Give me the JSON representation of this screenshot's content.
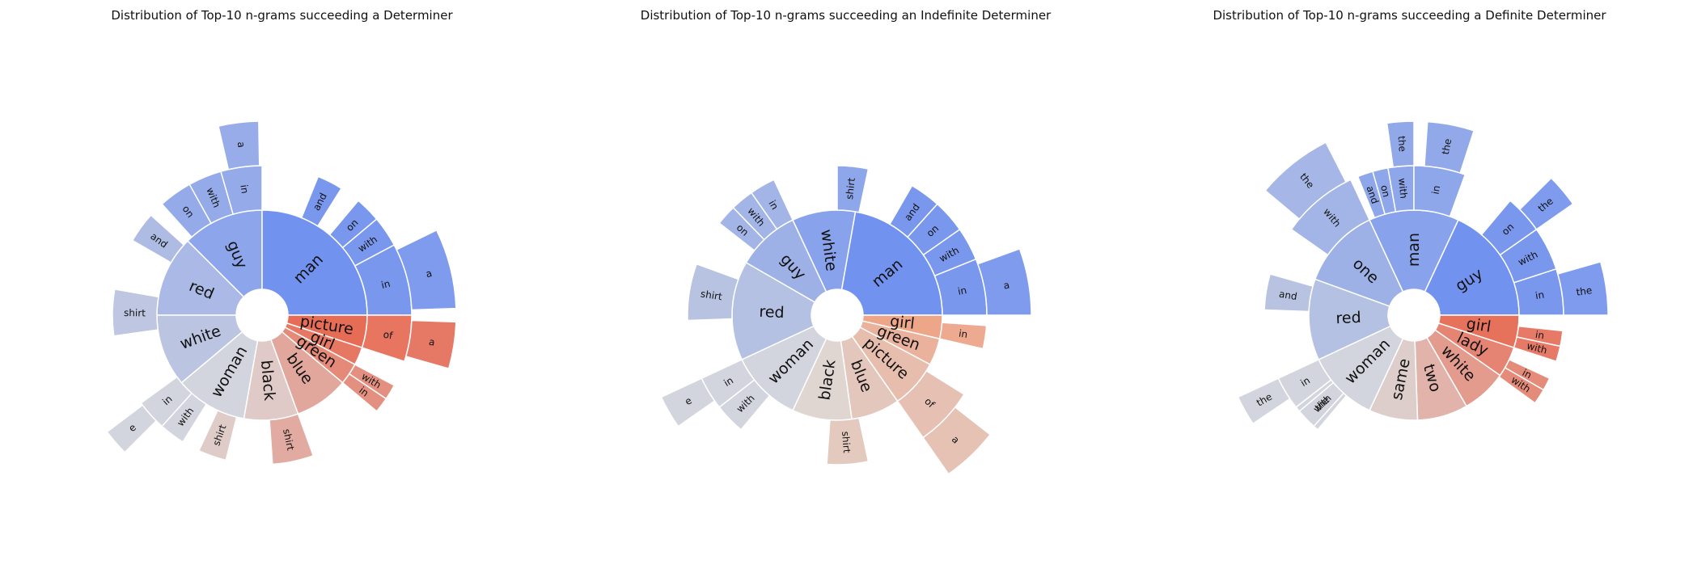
{
  "chart_data": [
    {
      "type": "sunburst",
      "title": "Distribution of Top-10 n-grams succeeding a Determiner",
      "cool_color": "#6b8ef0",
      "warm_color": "#e8664e",
      "rings": [
        [
          {
            "label": "red",
            "start": 270,
            "end": 315,
            "tone": -0.45,
            "children": []
          },
          {
            "label": "guy",
            "start": 315,
            "end": 360,
            "tone": -0.7,
            "children": [
              {
                "label": "on",
                "start": 318,
                "end": 331,
                "tone": -0.7,
                "children": []
              },
              {
                "label": "with",
                "start": 331,
                "end": 344,
                "tone": -0.7,
                "children": []
              },
              {
                "label": "in",
                "start": 344,
                "end": 360,
                "tone": -0.7,
                "children": [
                  {
                    "label": "a",
                    "start": 347,
                    "end": 359,
                    "tone": -0.7
                  }
                ]
              }
            ]
          },
          {
            "label": "man",
            "start": 0,
            "end": 90,
            "tone": -0.95,
            "children": [
              {
                "label": "and",
                "start": 22,
                "end": 32,
                "tone": -0.95,
                "children": []
              },
              {
                "label": "on",
                "start": 40,
                "end": 50,
                "tone": -0.95,
                "children": []
              },
              {
                "label": "with",
                "start": 50,
                "end": 62,
                "tone": -0.95,
                "children": []
              },
              {
                "label": "in",
                "start": 62,
                "end": 90,
                "tone": -0.95,
                "children": [
                  {
                    "label": "a",
                    "start": 64,
                    "end": 88,
                    "tone": -0.95
                  }
                ]
              }
            ]
          },
          {
            "label": "picture",
            "start": 90,
            "end": 108,
            "tone": 0.95,
            "children": [
              {
                "label": "of",
                "start": 90,
                "end": 108,
                "tone": 0.95,
                "children": [
                  {
                    "label": "a",
                    "start": 92,
                    "end": 106,
                    "tone": 0.95
                  }
                ]
              }
            ]
          },
          {
            "label": "girl",
            "start": 108,
            "end": 118,
            "tone": 0.85,
            "children": []
          },
          {
            "label": "green",
            "start": 118,
            "end": 130,
            "tone": 0.7,
            "children": [
              {
                "label": "with",
                "start": 118,
                "end": 124,
                "tone": 0.7,
                "children": []
              },
              {
                "label": "in",
                "start": 124,
                "end": 130,
                "tone": 0.7,
                "children": []
              }
            ]
          },
          {
            "label": "blue",
            "start": 130,
            "end": 160,
            "tone": 0.45,
            "children": [
              {
                "label": "shirt",
                "start": 160,
                "end": 176,
                "tone": 0.45,
                "children": []
              }
            ]
          },
          {
            "label": "black",
            "start": 160,
            "end": 190,
            "tone": 0.15,
            "children": [
              {
                "label": "shirt",
                "start": 194,
                "end": 205,
                "tone": 0.15,
                "children": []
              }
            ]
          },
          {
            "label": "woman",
            "start": 190,
            "end": 230,
            "tone": -0.1,
            "children": [
              {
                "label": "with",
                "start": 212,
                "end": 222,
                "tone": -0.1,
                "children": []
              },
              {
                "label": "in",
                "start": 222,
                "end": 234,
                "tone": -0.1,
                "children": [
                  {
                    "label": "e",
                    "start": 225,
                    "end": 233,
                    "tone": -0.1
                  }
                ]
              }
            ]
          },
          {
            "label": "white",
            "start": 230,
            "end": 270,
            "tone": -0.3,
            "children": [
              {
                "label": "shirt",
                "start": 262,
                "end": 280,
                "tone": -0.3,
                "children": []
              },
              {
                "label": "and",
                "start": 300,
                "end": 312,
                "tone": -0.45,
                "children": []
              }
            ]
          }
        ]
      ]
    },
    {
      "type": "sunburst",
      "title": "Distribution of Top-10 n-grams succeeding an Indefinite Determiner",
      "cool_color": "#6b8ef0",
      "warm_color": "#f0a080",
      "rings": [
        [
          {
            "label": "guy",
            "start": 300,
            "end": 335,
            "tone": -0.55,
            "children": [
              {
                "label": "on",
                "start": 308,
                "end": 316,
                "tone": -0.55,
                "children": []
              },
              {
                "label": "with",
                "start": 316,
                "end": 325,
                "tone": -0.55,
                "children": []
              },
              {
                "label": "in",
                "start": 325,
                "end": 335,
                "tone": -0.55,
                "children": []
              }
            ]
          },
          {
            "label": "white",
            "start": 335,
            "end": 10,
            "tone": -0.75,
            "children": [
              {
                "label": "shirt",
                "start": 0,
                "end": 12,
                "tone": -0.75,
                "children": []
              }
            ]
          },
          {
            "label": "man",
            "start": 10,
            "end": 90,
            "tone": -0.95,
            "children": [
              {
                "label": "and",
                "start": 30,
                "end": 42,
                "tone": -0.95,
                "children": []
              },
              {
                "label": "on",
                "start": 42,
                "end": 55,
                "tone": -0.95,
                "children": []
              },
              {
                "label": "with",
                "start": 55,
                "end": 68,
                "tone": -0.95,
                "children": []
              },
              {
                "label": "in",
                "start": 68,
                "end": 90,
                "tone": -0.95,
                "children": [
                  {
                    "label": "a",
                    "start": 70,
                    "end": 90,
                    "tone": -0.95
                  }
                ]
              }
            ]
          },
          {
            "label": "girl",
            "start": 90,
            "end": 103,
            "tone": 0.9,
            "children": [
              {
                "label": "in",
                "start": 94,
                "end": 103,
                "tone": 0.9,
                "children": []
              }
            ]
          },
          {
            "label": "green",
            "start": 103,
            "end": 118,
            "tone": 0.7,
            "children": []
          },
          {
            "label": "picture",
            "start": 118,
            "end": 145,
            "tone": 0.5,
            "children": [
              {
                "label": "of",
                "start": 122,
                "end": 145,
                "tone": 0.5,
                "children": [
                  {
                    "label": "a",
                    "start": 128,
                    "end": 145,
                    "tone": 0.5
                  }
                ]
              }
            ]
          },
          {
            "label": "blue",
            "start": 145,
            "end": 172,
            "tone": 0.35,
            "children": [
              {
                "label": "shirt",
                "start": 168,
                "end": 184,
                "tone": 0.35,
                "children": []
              }
            ]
          },
          {
            "label": "black",
            "start": 172,
            "end": 205,
            "tone": 0.12,
            "children": []
          },
          {
            "label": "woman",
            "start": 205,
            "end": 245,
            "tone": -0.1,
            "children": [
              {
                "label": "with",
                "start": 220,
                "end": 232,
                "tone": -0.1,
                "children": []
              },
              {
                "label": "in",
                "start": 232,
                "end": 245,
                "tone": -0.1,
                "children": [
                  {
                    "label": "e",
                    "start": 235,
                    "end": 245,
                    "tone": -0.1
                  }
                ]
              }
            ]
          },
          {
            "label": "red",
            "start": 245,
            "end": 300,
            "tone": -0.35,
            "children": [
              {
                "label": "shirt",
                "start": 268,
                "end": 290,
                "tone": -0.35,
                "children": []
              }
            ]
          }
        ]
      ]
    },
    {
      "type": "sunburst",
      "title": "Distribution of Top-10 n-grams succeeding a Definite Determiner",
      "cool_color": "#6b8ef0",
      "warm_color": "#e8664e",
      "rings": [
        [
          {
            "label": "one",
            "start": 290,
            "end": 335,
            "tone": -0.55,
            "children": [
              {
                "label": "with",
                "start": 305,
                "end": 335,
                "tone": -0.55,
                "children": [
                  {
                    "label": "the",
                    "start": 310,
                    "end": 333,
                    "tone": -0.55
                  }
                ]
              }
            ]
          },
          {
            "label": "man",
            "start": 335,
            "end": 25,
            "tone": -0.75,
            "children": [
              {
                "label": "and",
                "start": 338,
                "end": 344,
                "tone": -0.75,
                "children": []
              },
              {
                "label": "on",
                "start": 344,
                "end": 350,
                "tone": -0.75,
                "children": []
              },
              {
                "label": "with",
                "start": 350,
                "end": 360,
                "tone": -0.75,
                "children": [
                  {
                    "label": "the",
                    "start": 352,
                    "end": 360,
                    "tone": -0.75
                  }
                ]
              },
              {
                "label": "in",
                "start": 0,
                "end": 20,
                "tone": -0.75,
                "children": [
                  {
                    "label": "the",
                    "start": 4,
                    "end": 18,
                    "tone": -0.75
                  }
                ]
              }
            ]
          },
          {
            "label": "guy",
            "start": 25,
            "end": 90,
            "tone": -0.95,
            "children": [
              {
                "label": "on",
                "start": 40,
                "end": 55,
                "tone": -0.95,
                "children": [
                  {
                    "label": "the",
                    "start": 45,
                    "end": 55,
                    "tone": -0.95
                  }
                ]
              },
              {
                "label": "with",
                "start": 55,
                "end": 72,
                "tone": -0.95,
                "children": []
              },
              {
                "label": "in",
                "start": 72,
                "end": 90,
                "tone": -0.95,
                "children": [
                  {
                    "label": "the",
                    "start": 74,
                    "end": 90,
                    "tone": -0.95
                  }
                ]
              }
            ]
          },
          {
            "label": "girl",
            "start": 90,
            "end": 108,
            "tone": 0.9,
            "children": [
              {
                "label": "in",
                "start": 96,
                "end": 102,
                "tone": 0.9,
                "children": []
              },
              {
                "label": "with",
                "start": 102,
                "end": 108,
                "tone": 0.9,
                "children": []
              }
            ]
          },
          {
            "label": "lady",
            "start": 108,
            "end": 125,
            "tone": 0.75,
            "children": [
              {
                "label": "in",
                "start": 115,
                "end": 120,
                "tone": 0.75,
                "children": []
              },
              {
                "label": "with",
                "start": 120,
                "end": 126,
                "tone": 0.75,
                "children": []
              }
            ]
          },
          {
            "label": "white",
            "start": 125,
            "end": 150,
            "tone": 0.55,
            "children": []
          },
          {
            "label": "two",
            "start": 150,
            "end": 178,
            "tone": 0.35,
            "children": []
          },
          {
            "label": "same",
            "start": 178,
            "end": 205,
            "tone": 0.12,
            "children": []
          },
          {
            "label": "woman",
            "start": 205,
            "end": 245,
            "tone": -0.1,
            "children": [
              {
                "label": "with",
                "start": 220,
                "end": 232,
                "tone": -0.1,
                "children": []
              },
              {
                "label": "in",
                "start": 232,
                "end": 245,
                "tone": -0.1,
                "children": [
                  {
                    "label": "the",
                    "start": 236,
                    "end": 245,
                    "tone": -0.1
                  }
                ]
              },
              {
                "label": "the",
                "start": 222,
                "end": 230,
                "tone": -0.1,
                "children": []
              }
            ]
          },
          {
            "label": "red",
            "start": 245,
            "end": 290,
            "tone": -0.35,
            "children": [
              {
                "label": "and",
                "start": 272,
                "end": 286,
                "tone": -0.35,
                "children": []
              }
            ]
          }
        ]
      ]
    }
  ]
}
